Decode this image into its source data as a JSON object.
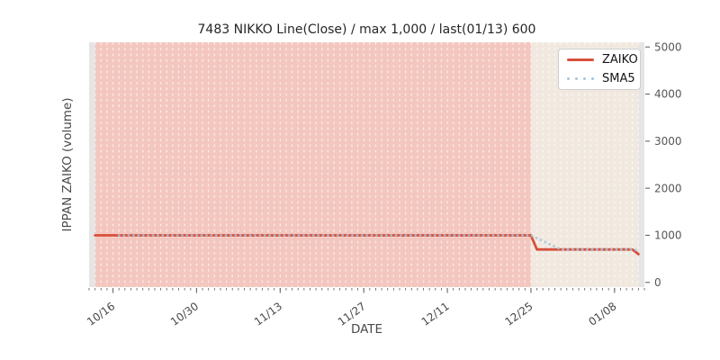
{
  "chart_data": {
    "type": "line",
    "title": "7483 NIKKO Line(Close) / max 1,000 / last(01/13) 600",
    "xlabel": "DATE",
    "ylabel": "IPPAN ZAIKO (volume)",
    "x_note": "x values are calendar-day indices; day 0 = 10/12, day 93 = right edge (~01/14)",
    "xlim": [
      0,
      93
    ],
    "ylim": [
      -100,
      5100
    ],
    "y_ticks": [
      0,
      1000,
      2000,
      3000,
      4000,
      5000
    ],
    "x_major_ticks": [
      {
        "day": 4,
        "label": "10/16"
      },
      {
        "day": 18,
        "label": "10/30"
      },
      {
        "day": 32,
        "label": "11/13"
      },
      {
        "day": 46,
        "label": "11/27"
      },
      {
        "day": 60,
        "label": "12/11"
      },
      {
        "day": 74,
        "label": "12/25"
      },
      {
        "day": 88,
        "label": "01/08"
      }
    ],
    "minor_ticks": {
      "interval_days": 1
    },
    "grid": {
      "orientation": "vertical",
      "interval_days": 1,
      "style": "dashed",
      "color": "rgba(255,255,255,0.65)"
    },
    "spans": [
      {
        "x0": 1,
        "x1": 74,
        "color": "#f3c7bf"
      },
      {
        "x0": 74,
        "x1": 92,
        "color": "#f1e9df"
      }
    ],
    "series": [
      {
        "name": "ZAIKO",
        "color": "#d8503c",
        "style": "solid",
        "points": [
          [
            1,
            1000
          ],
          [
            74,
            1000
          ],
          [
            75,
            700
          ],
          [
            91,
            700
          ],
          [
            92,
            600
          ]
        ]
      },
      {
        "name": "SMA5",
        "color": "#a6c4db",
        "style": "dotted",
        "points": [
          [
            5,
            1000
          ],
          [
            74,
            1000
          ],
          [
            75,
            940
          ],
          [
            76,
            880
          ],
          [
            77,
            820
          ],
          [
            78,
            760
          ],
          [
            79,
            700
          ],
          [
            91,
            700
          ],
          [
            92,
            680
          ]
        ]
      }
    ],
    "legend_position": "upper right",
    "last_point": {
      "date": "01/13",
      "value": 600
    },
    "max_value": 1000
  },
  "colors": {
    "plot_bg": "#e5e5e5",
    "tick_mark": "#666666",
    "x_tick_label": "#474747",
    "y_tick_label": "#565656",
    "zaiko_red": "#d8503c",
    "sma5_blue": "#a6c4db"
  }
}
